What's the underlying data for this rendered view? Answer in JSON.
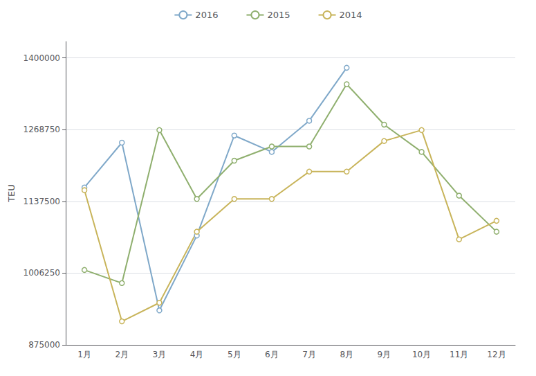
{
  "chart_data": {
    "type": "line",
    "categories": [
      "1月",
      "2月",
      "3月",
      "4月",
      "5月",
      "6月",
      "7月",
      "8月",
      "9月",
      "10月",
      "11月",
      "12月"
    ],
    "series": [
      {
        "name": "2016",
        "color": "#7fa8c9",
        "marker": "circle",
        "values": [
          1163000,
          1245000,
          938000,
          1075000,
          1258000,
          1228000,
          1285000,
          1382000,
          null,
          null,
          null,
          null
        ]
      },
      {
        "name": "2015",
        "color": "#8faf6e",
        "marker": "circle",
        "values": [
          1012000,
          988000,
          1268000,
          1142000,
          1212000,
          1238000,
          1238000,
          1352000,
          1278000,
          1228000,
          1148000,
          1082000
        ]
      },
      {
        "name": "2014",
        "color": "#c8b45a",
        "marker": "circle",
        "values": [
          1158000,
          918000,
          952000,
          1082000,
          1142000,
          1142000,
          1192000,
          1192000,
          1248000,
          1268000,
          1068000,
          1102000
        ]
      }
    ],
    "ylabel": "TEU",
    "ylim": [
      875000,
      1430000
    ],
    "yticks": [
      875000,
      1006250,
      1137500,
      1268750,
      1400000
    ],
    "grid": true,
    "legend": "top"
  }
}
